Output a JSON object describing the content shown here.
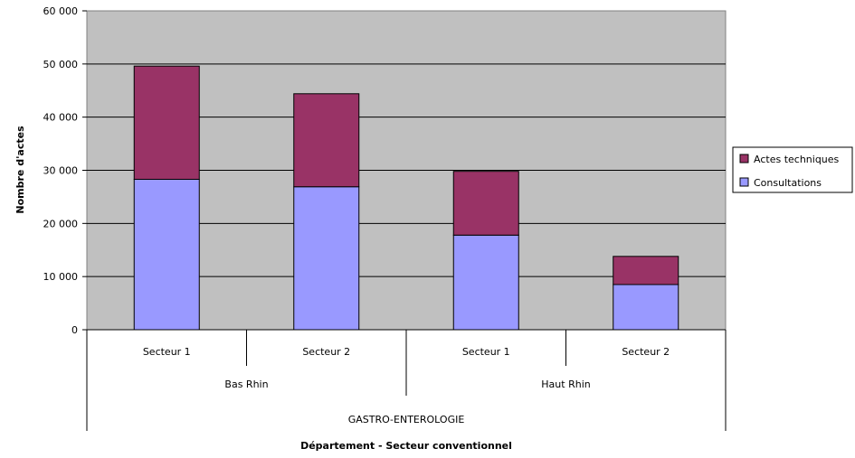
{
  "chart_data": {
    "type": "bar",
    "stacked": true,
    "ylabel": "Nombre d'actes",
    "xlabel": "Département - Secteur conventionnel",
    "ylim": [
      0,
      60000
    ],
    "y_ticks": [
      "0",
      "10 000",
      "20 000",
      "30 000",
      "40 000",
      "50 000",
      "60 000"
    ],
    "grid": true,
    "legend_position": "right",
    "categories": [
      "Secteur 1",
      "Secteur 2",
      "Secteur 1",
      "Secteur 2"
    ],
    "groups": [
      "Bas Rhin",
      "Haut Rhin"
    ],
    "supergroup": "GASTRO-ENTEROLOGIE",
    "series": [
      {
        "name": "Consultations",
        "color": "#9999ff",
        "values": [
          28300,
          26900,
          17800,
          8500
        ]
      },
      {
        "name": "Actes techniques",
        "color": "#993366",
        "values": [
          21300,
          17500,
          12000,
          5300
        ]
      }
    ],
    "legend_order": [
      "Actes techniques",
      "Consultations"
    ],
    "plot_background": "#c0c0c0"
  }
}
